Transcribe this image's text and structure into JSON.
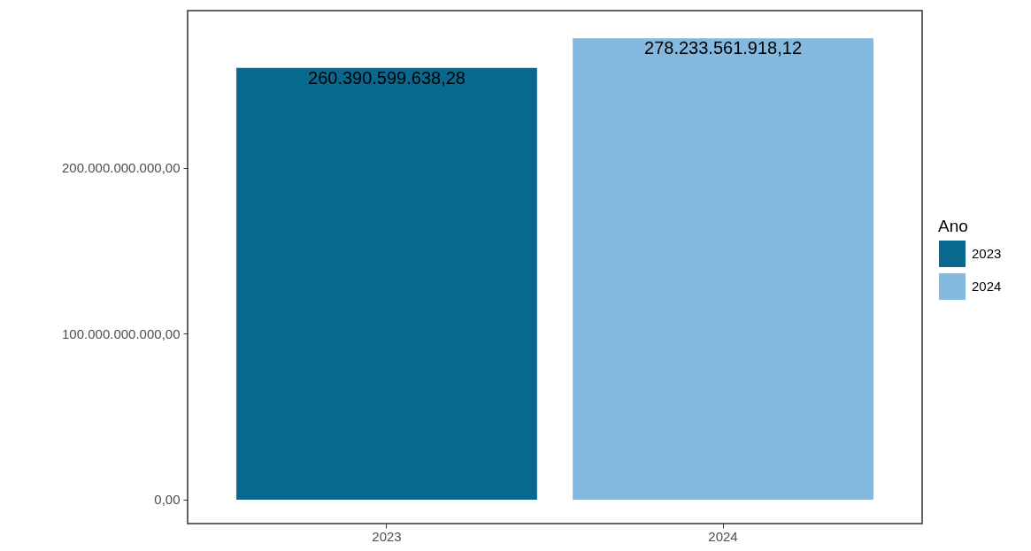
{
  "chart_data": {
    "type": "bar",
    "categories": [
      "2023",
      "2024"
    ],
    "series": [
      {
        "name": "2023",
        "color": "#08698f",
        "values": [
          260390599638.28,
          null
        ],
        "value_labels": [
          "260.390.599.638,28",
          null
        ]
      },
      {
        "name": "2024",
        "color": "#85b8df",
        "values": [
          null,
          278233561918.12
        ],
        "value_labels": [
          null,
          "278.233.561.918,12"
        ]
      }
    ],
    "ylim": [
      -14400000000,
      294900000000
    ],
    "yticks": [
      {
        "value": 0,
        "label": "0,00"
      },
      {
        "value": 100000000000,
        "label": "100.000.000.000,00"
      },
      {
        "value": 200000000000,
        "label": "200.000.000.000,00"
      }
    ],
    "legend_title": "Ano",
    "legend": "right",
    "grid": false
  }
}
